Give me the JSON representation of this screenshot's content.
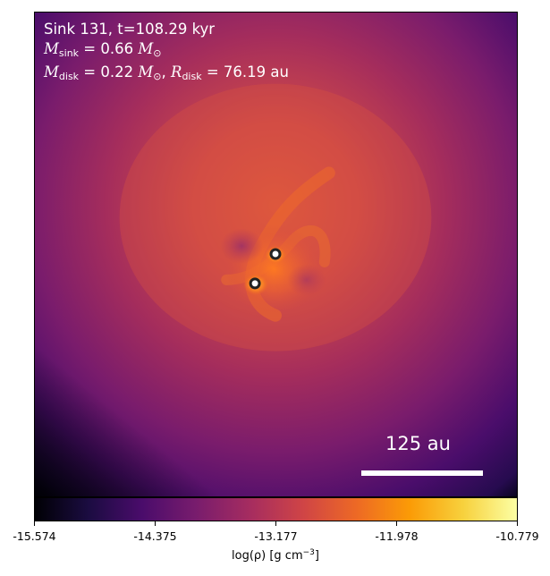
{
  "annotation": {
    "line1": "Sink 131, t=108.29 kyr",
    "msink_value": "0.66",
    "mdisk_value": "0.22",
    "rdisk_value": "76.19",
    "unit_au": "au"
  },
  "scale_bar": {
    "label": "125 au"
  },
  "colorbar": {
    "ticks": [
      "-15.574",
      "-14.375",
      "-13.177",
      "-11.978",
      "-10.779"
    ],
    "label_prefix": "log(ρ) [g cm",
    "label_exponent": "−3",
    "label_suffix": "]",
    "colormap": "inferno"
  },
  "sinks": [
    {
      "name": "sink-particle-a"
    },
    {
      "name": "sink-particle-b"
    }
  ]
}
